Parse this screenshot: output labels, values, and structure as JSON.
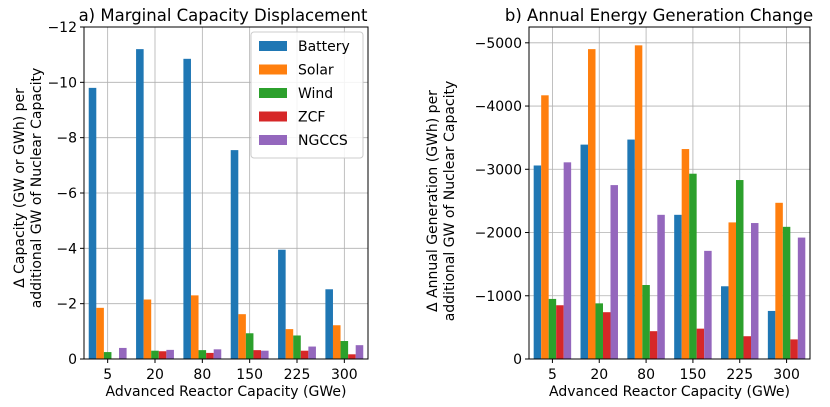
{
  "chart_data": [
    {
      "type": "bar",
      "title": "a) Marginal Capacity Displacement",
      "xlabel": "Advanced Reactor Capacity (GWe)",
      "ylabel": [
        "Δ Capacity (GW or GWh) per",
        "additional GW of Nuclear Capacity"
      ],
      "categories": [
        "5",
        "20",
        "80",
        "150",
        "225",
        "300"
      ],
      "ylim": [
        0,
        -12
      ],
      "yticks": [
        0,
        -2,
        -4,
        -6,
        -8,
        -10,
        -12
      ],
      "ytick_labels": [
        "0",
        "−2",
        "−4",
        "−6",
        "−8",
        "−10",
        "−12"
      ],
      "grid": true,
      "legend_position": "top-right",
      "series": [
        {
          "name": "Battery",
          "color": "#1f77b4",
          "values": [
            -9.8,
            -11.2,
            -10.85,
            -7.55,
            -3.95,
            -2.52
          ]
        },
        {
          "name": "Solar",
          "color": "#ff7f0e",
          "values": [
            -1.85,
            -2.15,
            -2.3,
            -1.62,
            -1.08,
            -1.22
          ]
        },
        {
          "name": "Wind",
          "color": "#2ca02c",
          "values": [
            -0.25,
            -0.3,
            -0.32,
            -0.93,
            -0.85,
            -0.65
          ]
        },
        {
          "name": "ZCF",
          "color": "#d62728",
          "values": [
            -0.02,
            -0.28,
            -0.22,
            -0.32,
            -0.3,
            -0.17
          ]
        },
        {
          "name": "NGCCS",
          "color": "#9467bd",
          "values": [
            -0.4,
            -0.33,
            -0.35,
            -0.3,
            -0.45,
            -0.5
          ]
        }
      ]
    },
    {
      "type": "bar",
      "title": "b) Annual Energy Generation Change",
      "xlabel": "Advanced Reactor Capacity (GWe)",
      "ylabel": [
        "Δ Annual Generation (GWh) per",
        "additional GW of Nuclear Capacity"
      ],
      "categories": [
        "5",
        "20",
        "80",
        "150",
        "225",
        "300"
      ],
      "ylim": [
        0,
        -5250
      ],
      "yticks": [
        0,
        -1000,
        -2000,
        -3000,
        -4000,
        -5000
      ],
      "ytick_labels": [
        "0",
        "−1000",
        "−2000",
        "−3000",
        "−4000",
        "−5000"
      ],
      "grid": true,
      "series": [
        {
          "name": "Battery",
          "color": "#1f77b4",
          "values": [
            -3060,
            -3390,
            -3470,
            -2280,
            -1150,
            -760
          ]
        },
        {
          "name": "Solar",
          "color": "#ff7f0e",
          "values": [
            -4170,
            -4900,
            -4960,
            -3320,
            -2160,
            -2470
          ]
        },
        {
          "name": "Wind",
          "color": "#2ca02c",
          "values": [
            -950,
            -880,
            -1170,
            -2930,
            -2830,
            -2090
          ]
        },
        {
          "name": "ZCF",
          "color": "#d62728",
          "values": [
            -850,
            -740,
            -440,
            -480,
            -360,
            -310
          ]
        },
        {
          "name": "NGCCS",
          "color": "#9467bd",
          "values": [
            -3110,
            -2750,
            -2280,
            -1710,
            -2150,
            -1920
          ]
        }
      ]
    }
  ]
}
